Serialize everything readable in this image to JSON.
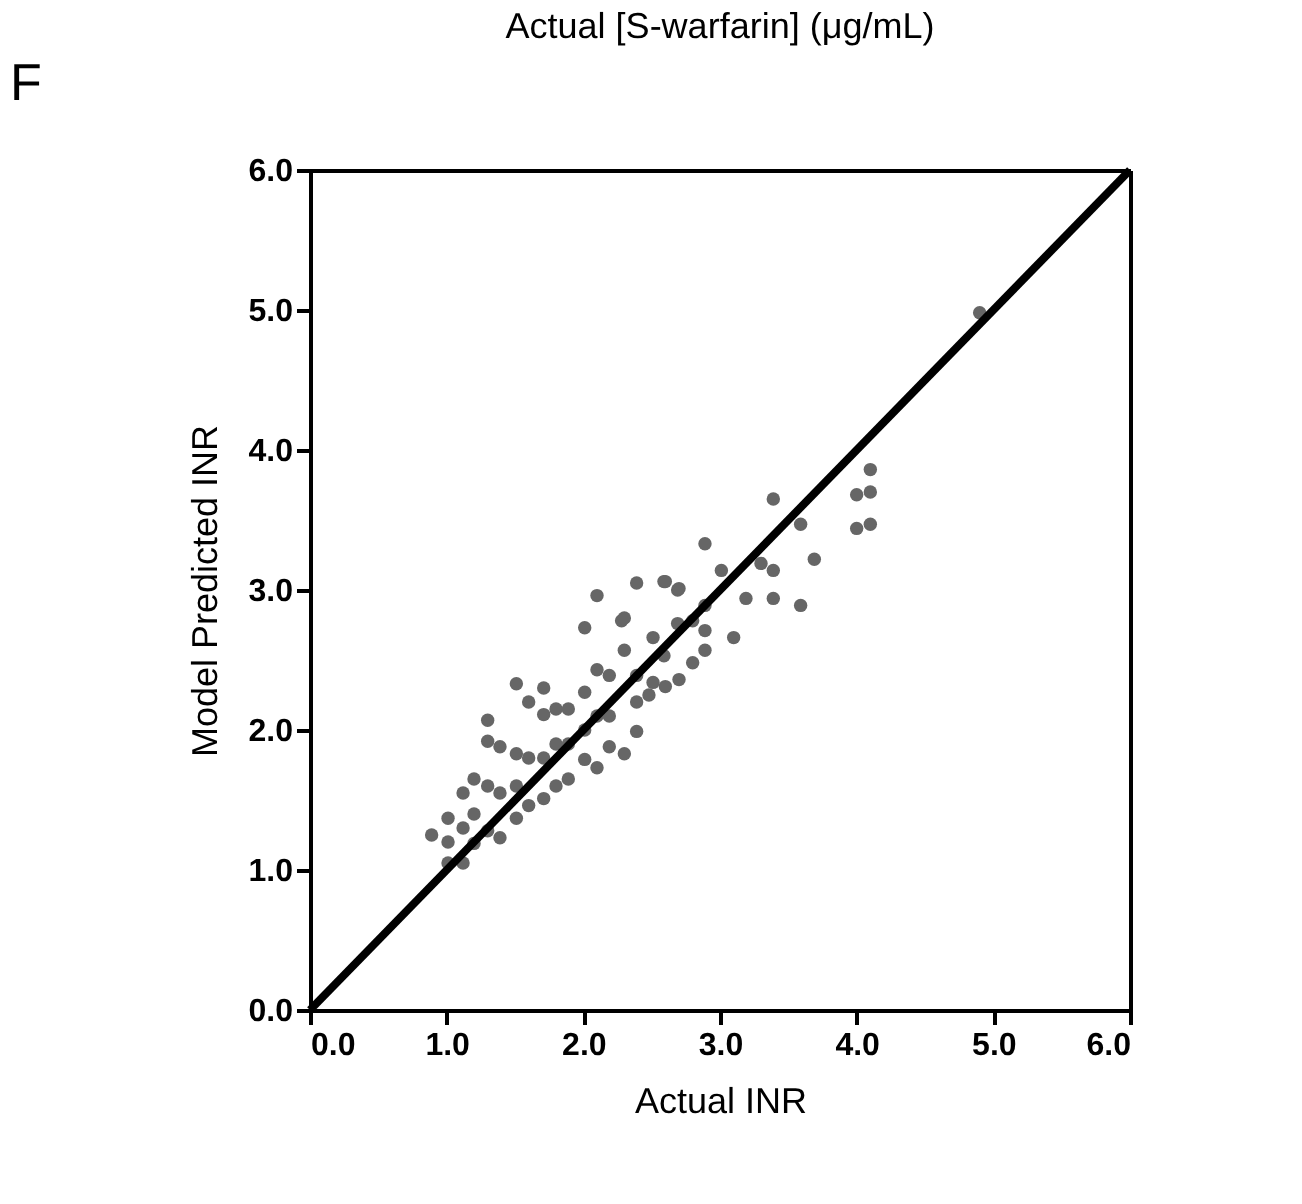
{
  "chart_data": {
    "type": "scatter",
    "title": "F",
    "xlabel": "Actual INR",
    "ylabel": "Model Predicted INR",
    "annotations": [
      "Actual [S-warfarin] (μg/mL)"
    ],
    "xlim": [
      0,
      6
    ],
    "ylim": [
      0,
      6
    ],
    "xticks": [
      {
        "value": 0,
        "label": "0.0"
      },
      {
        "value": 1,
        "label": "1.0"
      },
      {
        "value": 2,
        "label": "2.0"
      },
      {
        "value": 3,
        "label": "3.0"
      },
      {
        "value": 4,
        "label": "4.0"
      },
      {
        "value": 5,
        "label": "5.0"
      },
      {
        "value": 6,
        "label": "6.0"
      }
    ],
    "yticks": [
      {
        "value": 0,
        "label": "0.0"
      },
      {
        "value": 1,
        "label": "1.0"
      },
      {
        "value": 2,
        "label": "2.0"
      },
      {
        "value": 3,
        "label": "3.0"
      },
      {
        "value": 4,
        "label": "4.0"
      },
      {
        "value": 5,
        "label": "5.0"
      },
      {
        "value": 6,
        "label": "6.0"
      }
    ],
    "grid": false,
    "marker": "circle",
    "series": [
      {
        "color": "#666666",
        "x": [
          0.89,
          1.01,
          1.01,
          1.01,
          1.12,
          1.12,
          1.12,
          1.2,
          1.2,
          1.2,
          1.3,
          1.3,
          1.3,
          1.3,
          1.39,
          1.39,
          1.39,
          1.51,
          1.51,
          1.51,
          1.51,
          1.6,
          1.6,
          1.6,
          1.71,
          1.71,
          1.71,
          1.71,
          1.8,
          1.8,
          1.8,
          1.89,
          1.89,
          1.89,
          2.01,
          2.01,
          2.01,
          2.01,
          2.1,
          2.1,
          2.1,
          2.1,
          2.19,
          2.19,
          2.19,
          2.28,
          2.3,
          2.3,
          2.3,
          2.39,
          2.39,
          2.39,
          2.39,
          2.48,
          2.51,
          2.51,
          2.59,
          2.59,
          2.6,
          2.6,
          2.69,
          2.69,
          2.7,
          2.7,
          2.8,
          2.8,
          2.89,
          2.89,
          2.89,
          2.89,
          3.01,
          3.1,
          3.19,
          3.3,
          3.39,
          3.39,
          3.39,
          3.59,
          3.59,
          3.69,
          4.0,
          4.0,
          4.1,
          4.1,
          4.1,
          4.9
        ],
        "values": [
          1.25,
          1.37,
          1.2,
          1.05,
          1.55,
          1.3,
          1.05,
          1.65,
          1.4,
          1.19,
          2.07,
          1.92,
          1.6,
          1.28,
          1.88,
          1.55,
          1.23,
          2.33,
          1.83,
          1.6,
          1.37,
          2.2,
          1.8,
          1.46,
          2.3,
          2.11,
          1.8,
          1.51,
          2.15,
          1.9,
          1.6,
          2.15,
          1.9,
          1.65,
          2.73,
          2.27,
          2.0,
          1.79,
          2.96,
          2.43,
          2.1,
          1.73,
          2.39,
          2.1,
          1.88,
          2.78,
          2.8,
          2.57,
          1.83,
          3.05,
          2.39,
          2.2,
          1.99,
          2.25,
          2.66,
          2.34,
          3.06,
          2.53,
          3.06,
          2.31,
          3.0,
          2.76,
          3.01,
          2.36,
          2.78,
          2.48,
          3.33,
          2.89,
          2.71,
          2.57,
          3.14,
          2.66,
          2.94,
          3.19,
          3.65,
          3.14,
          2.94,
          3.47,
          2.89,
          3.22,
          3.68,
          3.44,
          3.86,
          3.7,
          3.47,
          4.98
        ]
      },
      {
        "type": "line",
        "color": "#000000",
        "line_style": "solid",
        "marker": "none",
        "x": [
          0,
          6
        ],
        "values": [
          0,
          6
        ]
      }
    ]
  }
}
